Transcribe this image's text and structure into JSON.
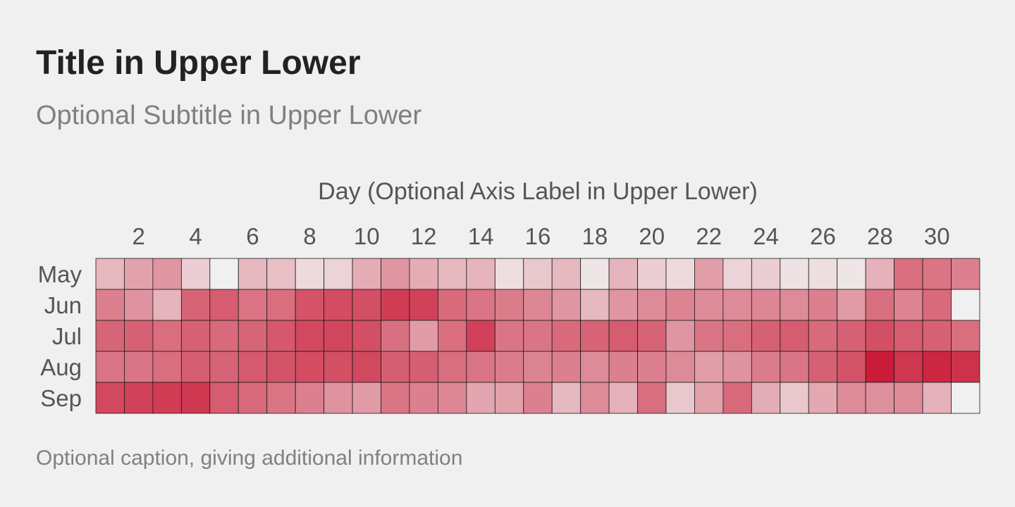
{
  "title": "Title in Upper Lower",
  "subtitle": "Optional Subtitle in Upper Lower",
  "caption": "Optional caption, giving additional information",
  "colors": {
    "background": "#f0f0f0",
    "cell_low": "#f0f0f0",
    "cell_high": "#c8102e",
    "cell_border": "#1a1a1a",
    "title": "#222222",
    "muted_text": "#808080",
    "axis_text": "#555555"
  },
  "chart_data": {
    "type": "heatmap",
    "xlabel": "Day (Optional Axis Label in Upper Lower)",
    "x": [
      1,
      2,
      3,
      4,
      5,
      6,
      7,
      8,
      9,
      10,
      11,
      12,
      13,
      14,
      15,
      16,
      17,
      18,
      19,
      20,
      21,
      22,
      23,
      24,
      25,
      26,
      27,
      28,
      29,
      30,
      31
    ],
    "x_tick_labels": [
      "2",
      "4",
      "6",
      "8",
      "10",
      "12",
      "14",
      "16",
      "18",
      "20",
      "22",
      "24",
      "26",
      "28",
      "30"
    ],
    "y": [
      "May",
      "Jun",
      "Jul",
      "Aug",
      "Sep"
    ],
    "value_range": [
      0,
      1
    ],
    "values": [
      [
        0.25,
        0.35,
        0.4,
        0.15,
        0.0,
        0.25,
        0.22,
        0.1,
        0.13,
        0.3,
        0.4,
        0.3,
        0.25,
        0.27,
        0.08,
        0.18,
        0.25,
        0.05,
        0.27,
        0.15,
        0.1,
        0.37,
        0.13,
        0.15,
        0.06,
        0.08,
        0.05,
        0.28,
        0.58,
        0.55,
        0.5
      ],
      [
        0.5,
        0.42,
        0.27,
        0.63,
        0.66,
        0.55,
        0.58,
        0.7,
        0.73,
        0.72,
        0.8,
        0.78,
        0.6,
        0.55,
        0.52,
        0.47,
        0.4,
        0.25,
        0.4,
        0.45,
        0.48,
        0.45,
        0.45,
        0.47,
        0.45,
        0.5,
        0.38,
        0.58,
        0.48,
        0.6,
        0.0
      ],
      [
        0.62,
        0.64,
        0.58,
        0.64,
        0.6,
        0.62,
        0.68,
        0.75,
        0.76,
        0.72,
        0.57,
        0.38,
        0.58,
        0.78,
        0.55,
        0.55,
        0.6,
        0.63,
        0.66,
        0.63,
        0.4,
        0.55,
        0.58,
        0.64,
        0.66,
        0.6,
        0.64,
        0.72,
        0.66,
        0.64,
        0.58
      ],
      [
        0.55,
        0.55,
        0.58,
        0.65,
        0.63,
        0.67,
        0.7,
        0.73,
        0.72,
        0.75,
        0.65,
        0.65,
        0.58,
        0.55,
        0.52,
        0.48,
        0.5,
        0.45,
        0.5,
        0.5,
        0.45,
        0.37,
        0.42,
        0.52,
        0.55,
        0.64,
        0.7,
        0.95,
        0.83,
        0.9,
        0.85
      ],
      [
        0.75,
        0.78,
        0.8,
        0.82,
        0.66,
        0.6,
        0.55,
        0.5,
        0.42,
        0.38,
        0.55,
        0.5,
        0.47,
        0.33,
        0.35,
        0.5,
        0.25,
        0.45,
        0.28,
        0.58,
        0.18,
        0.35,
        0.6,
        0.3,
        0.18,
        0.32,
        0.45,
        0.43,
        0.45,
        0.28,
        0.0
      ]
    ]
  }
}
